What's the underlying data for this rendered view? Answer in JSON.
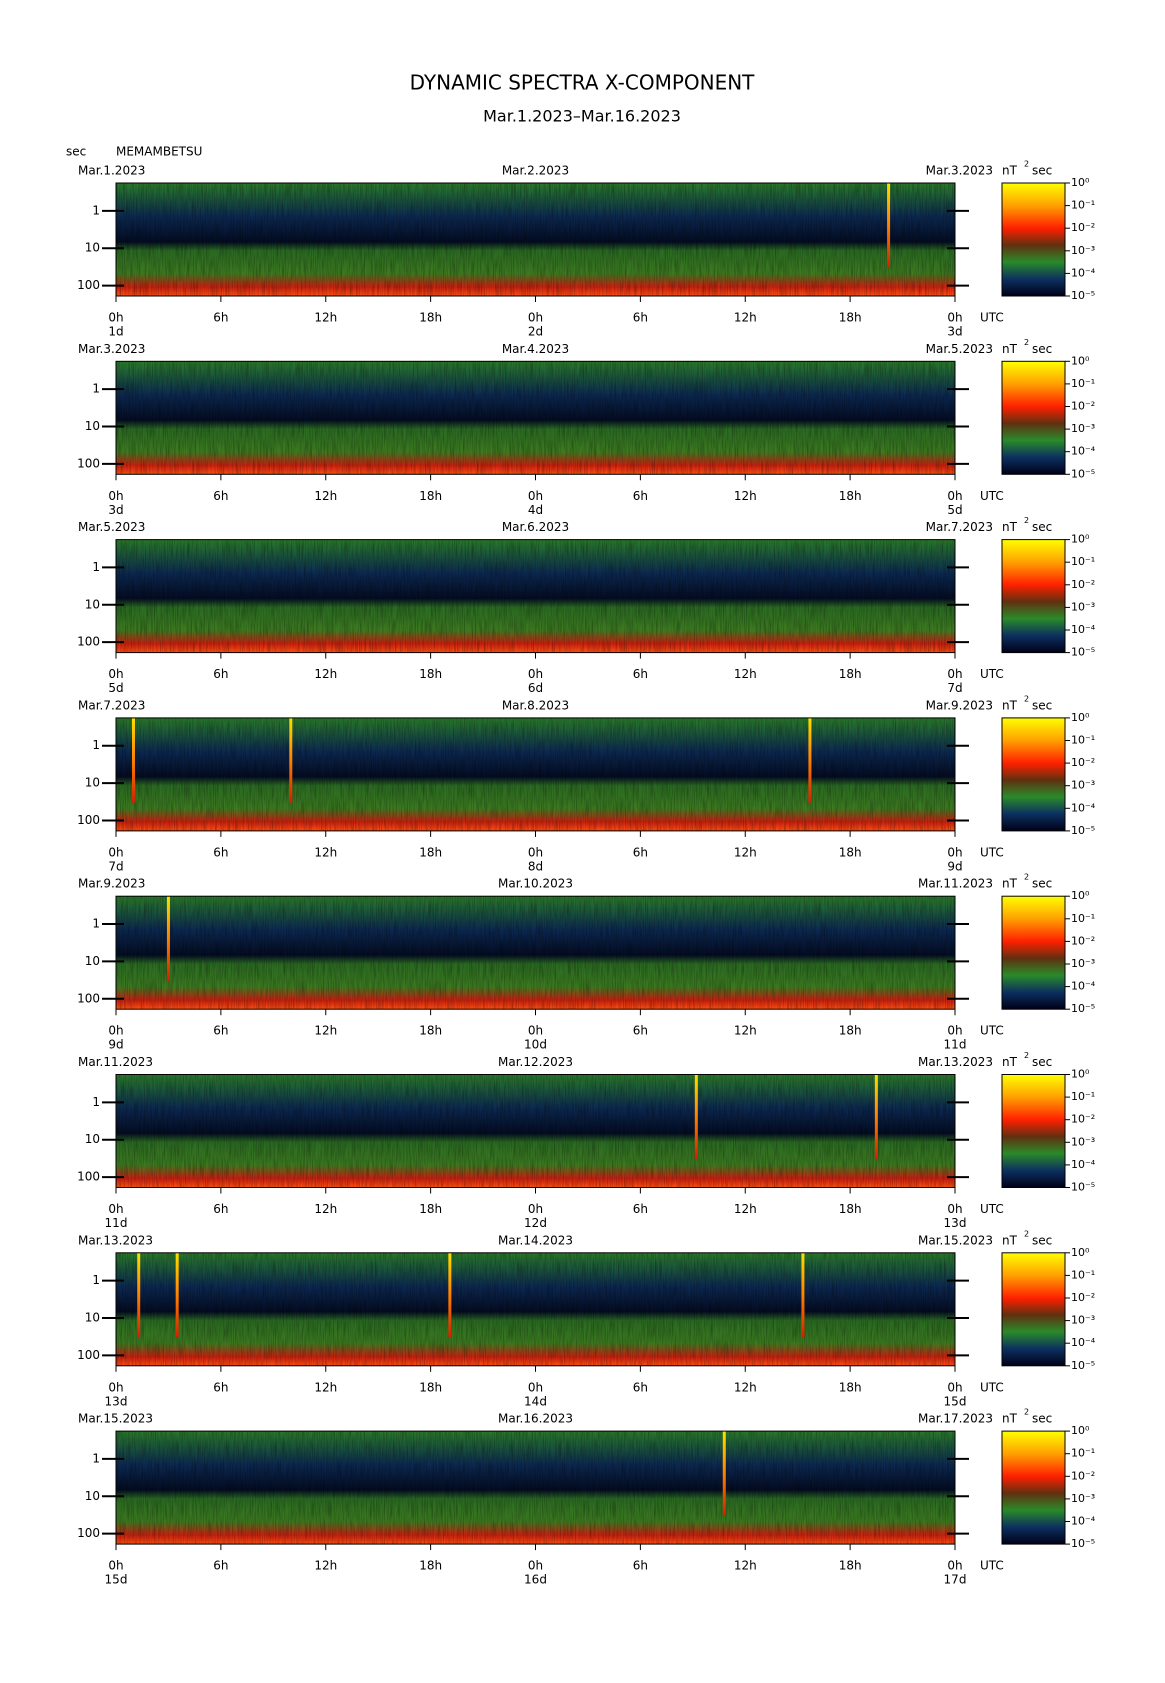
{
  "title": "DYNAMIC SPECTRA X-COMPONENT",
  "subtitle": "Mar.1.2023–Mar.16.2023",
  "y_label": "sec",
  "station": "MEMAMBETSU",
  "x_label": "UTC",
  "colorbar_label": "nT",
  "colorbar_label_exp": "2",
  "colorbar_label_unit": "sec",
  "event_color": "#ffe000",
  "chart_data": [
    {
      "type": "spectrogram",
      "date_left": "Mar.1.2023",
      "date_mid": "Mar.2.2023",
      "date_right": "Mar.3.2023",
      "xlim": [
        0,
        48
      ],
      "xticks": [
        {
          "value": 0,
          "label": "0h"
        },
        {
          "value": 6,
          "label": "6h"
        },
        {
          "value": 12,
          "label": "12h"
        },
        {
          "value": 18,
          "label": "18h"
        },
        {
          "value": 24,
          "label": "0h"
        },
        {
          "value": 30,
          "label": "6h"
        },
        {
          "value": 36,
          "label": "12h"
        },
        {
          "value": 42,
          "label": "18h"
        },
        {
          "value": 48,
          "label": "0h"
        }
      ],
      "day_labels": [
        {
          "value": 0,
          "label": "1d"
        },
        {
          "value": 24,
          "label": "2d"
        },
        {
          "value": 48,
          "label": "3d"
        }
      ],
      "ylim": [
        0.18,
        190
      ],
      "yticks": [
        1,
        10,
        100
      ],
      "y_log": true,
      "clim": [
        1e-05,
        1
      ],
      "cticks": [
        {
          "value": 1,
          "label": "10⁰"
        },
        {
          "value": 0.1,
          "label": "10⁻¹"
        },
        {
          "value": 0.01,
          "label": "10⁻²"
        },
        {
          "value": 0.001,
          "label": "10⁻³"
        },
        {
          "value": 0.0001,
          "label": "10⁻⁴"
        },
        {
          "value": 1e-05,
          "label": "10⁻⁵"
        }
      ],
      "events": [
        44.2
      ]
    },
    {
      "type": "spectrogram",
      "date_left": "Mar.3.2023",
      "date_mid": "Mar.4.2023",
      "date_right": "Mar.5.2023",
      "xlim": [
        0,
        48
      ],
      "xticks": [
        {
          "value": 0,
          "label": "0h"
        },
        {
          "value": 6,
          "label": "6h"
        },
        {
          "value": 12,
          "label": "12h"
        },
        {
          "value": 18,
          "label": "18h"
        },
        {
          "value": 24,
          "label": "0h"
        },
        {
          "value": 30,
          "label": "6h"
        },
        {
          "value": 36,
          "label": "12h"
        },
        {
          "value": 42,
          "label": "18h"
        },
        {
          "value": 48,
          "label": "0h"
        }
      ],
      "day_labels": [
        {
          "value": 0,
          "label": "3d"
        },
        {
          "value": 24,
          "label": "4d"
        },
        {
          "value": 48,
          "label": "5d"
        }
      ],
      "ylim": [
        0.18,
        190
      ],
      "yticks": [
        1,
        10,
        100
      ],
      "y_log": true,
      "clim": [
        1e-05,
        1
      ],
      "cticks": [
        {
          "value": 1,
          "label": "10⁰"
        },
        {
          "value": 0.1,
          "label": "10⁻¹"
        },
        {
          "value": 0.01,
          "label": "10⁻²"
        },
        {
          "value": 0.001,
          "label": "10⁻³"
        },
        {
          "value": 0.0001,
          "label": "10⁻⁴"
        },
        {
          "value": 1e-05,
          "label": "10⁻⁵"
        }
      ],
      "events": []
    },
    {
      "type": "spectrogram",
      "date_left": "Mar.5.2023",
      "date_mid": "Mar.6.2023",
      "date_right": "Mar.7.2023",
      "xlim": [
        0,
        48
      ],
      "xticks": [
        {
          "value": 0,
          "label": "0h"
        },
        {
          "value": 6,
          "label": "6h"
        },
        {
          "value": 12,
          "label": "12h"
        },
        {
          "value": 18,
          "label": "18h"
        },
        {
          "value": 24,
          "label": "0h"
        },
        {
          "value": 30,
          "label": "6h"
        },
        {
          "value": 36,
          "label": "12h"
        },
        {
          "value": 42,
          "label": "18h"
        },
        {
          "value": 48,
          "label": "0h"
        }
      ],
      "day_labels": [
        {
          "value": 0,
          "label": "5d"
        },
        {
          "value": 24,
          "label": "6d"
        },
        {
          "value": 48,
          "label": "7d"
        }
      ],
      "ylim": [
        0.18,
        190
      ],
      "yticks": [
        1,
        10,
        100
      ],
      "y_log": true,
      "clim": [
        1e-05,
        1
      ],
      "cticks": [
        {
          "value": 1,
          "label": "10⁰"
        },
        {
          "value": 0.1,
          "label": "10⁻¹"
        },
        {
          "value": 0.01,
          "label": "10⁻²"
        },
        {
          "value": 0.001,
          "label": "10⁻³"
        },
        {
          "value": 0.0001,
          "label": "10⁻⁴"
        },
        {
          "value": 1e-05,
          "label": "10⁻⁵"
        }
      ],
      "events": []
    },
    {
      "type": "spectrogram",
      "date_left": "Mar.7.2023",
      "date_mid": "Mar.8.2023",
      "date_right": "Mar.9.2023",
      "xlim": [
        0,
        48
      ],
      "xticks": [
        {
          "value": 0,
          "label": "0h"
        },
        {
          "value": 6,
          "label": "6h"
        },
        {
          "value": 12,
          "label": "12h"
        },
        {
          "value": 18,
          "label": "18h"
        },
        {
          "value": 24,
          "label": "0h"
        },
        {
          "value": 30,
          "label": "6h"
        },
        {
          "value": 36,
          "label": "12h"
        },
        {
          "value": 42,
          "label": "18h"
        },
        {
          "value": 48,
          "label": "0h"
        }
      ],
      "day_labels": [
        {
          "value": 0,
          "label": "7d"
        },
        {
          "value": 24,
          "label": "8d"
        },
        {
          "value": 48,
          "label": "9d"
        }
      ],
      "ylim": [
        0.18,
        190
      ],
      "yticks": [
        1,
        10,
        100
      ],
      "y_log": true,
      "clim": [
        1e-05,
        1
      ],
      "cticks": [
        {
          "value": 1,
          "label": "10⁰"
        },
        {
          "value": 0.1,
          "label": "10⁻¹"
        },
        {
          "value": 0.01,
          "label": "10⁻²"
        },
        {
          "value": 0.001,
          "label": "10⁻³"
        },
        {
          "value": 0.0001,
          "label": "10⁻⁴"
        },
        {
          "value": 1e-05,
          "label": "10⁻⁵"
        }
      ],
      "events": [
        1.0,
        10.0,
        39.7
      ]
    },
    {
      "type": "spectrogram",
      "date_left": "Mar.9.2023",
      "date_mid": "Mar.10.2023",
      "date_right": "Mar.11.2023",
      "xlim": [
        0,
        48
      ],
      "xticks": [
        {
          "value": 0,
          "label": "0h"
        },
        {
          "value": 6,
          "label": "6h"
        },
        {
          "value": 12,
          "label": "12h"
        },
        {
          "value": 18,
          "label": "18h"
        },
        {
          "value": 24,
          "label": "0h"
        },
        {
          "value": 30,
          "label": "6h"
        },
        {
          "value": 36,
          "label": "12h"
        },
        {
          "value": 42,
          "label": "18h"
        },
        {
          "value": 48,
          "label": "0h"
        }
      ],
      "day_labels": [
        {
          "value": 0,
          "label": "9d"
        },
        {
          "value": 24,
          "label": "10d"
        },
        {
          "value": 48,
          "label": "11d"
        }
      ],
      "ylim": [
        0.18,
        190
      ],
      "yticks": [
        1,
        10,
        100
      ],
      "y_log": true,
      "clim": [
        1e-05,
        1
      ],
      "cticks": [
        {
          "value": 1,
          "label": "10⁰"
        },
        {
          "value": 0.1,
          "label": "10⁻¹"
        },
        {
          "value": 0.01,
          "label": "10⁻²"
        },
        {
          "value": 0.001,
          "label": "10⁻³"
        },
        {
          "value": 0.0001,
          "label": "10⁻⁴"
        },
        {
          "value": 1e-05,
          "label": "10⁻⁵"
        }
      ],
      "events": [
        3.0
      ]
    },
    {
      "type": "spectrogram",
      "date_left": "Mar.11.2023",
      "date_mid": "Mar.12.2023",
      "date_right": "Mar.13.2023",
      "xlim": [
        0,
        48
      ],
      "xticks": [
        {
          "value": 0,
          "label": "0h"
        },
        {
          "value": 6,
          "label": "6h"
        },
        {
          "value": 12,
          "label": "12h"
        },
        {
          "value": 18,
          "label": "18h"
        },
        {
          "value": 24,
          "label": "0h"
        },
        {
          "value": 30,
          "label": "6h"
        },
        {
          "value": 36,
          "label": "12h"
        },
        {
          "value": 42,
          "label": "18h"
        },
        {
          "value": 48,
          "label": "0h"
        }
      ],
      "day_labels": [
        {
          "value": 0,
          "label": "11d"
        },
        {
          "value": 24,
          "label": "12d"
        },
        {
          "value": 48,
          "label": "13d"
        }
      ],
      "ylim": [
        0.18,
        190
      ],
      "yticks": [
        1,
        10,
        100
      ],
      "y_log": true,
      "clim": [
        1e-05,
        1
      ],
      "cticks": [
        {
          "value": 1,
          "label": "10⁰"
        },
        {
          "value": 0.1,
          "label": "10⁻¹"
        },
        {
          "value": 0.01,
          "label": "10⁻²"
        },
        {
          "value": 0.001,
          "label": "10⁻³"
        },
        {
          "value": 0.0001,
          "label": "10⁻⁴"
        },
        {
          "value": 1e-05,
          "label": "10⁻⁵"
        }
      ],
      "events": [
        33.2,
        43.5
      ]
    },
    {
      "type": "spectrogram",
      "date_left": "Mar.13.2023",
      "date_mid": "Mar.14.2023",
      "date_right": "Mar.15.2023",
      "xlim": [
        0,
        48
      ],
      "xticks": [
        {
          "value": 0,
          "label": "0h"
        },
        {
          "value": 6,
          "label": "6h"
        },
        {
          "value": 12,
          "label": "12h"
        },
        {
          "value": 18,
          "label": "18h"
        },
        {
          "value": 24,
          "label": "0h"
        },
        {
          "value": 30,
          "label": "6h"
        },
        {
          "value": 36,
          "label": "12h"
        },
        {
          "value": 42,
          "label": "18h"
        },
        {
          "value": 48,
          "label": "0h"
        }
      ],
      "day_labels": [
        {
          "value": 0,
          "label": "13d"
        },
        {
          "value": 24,
          "label": "14d"
        },
        {
          "value": 48,
          "label": "15d"
        }
      ],
      "ylim": [
        0.18,
        190
      ],
      "yticks": [
        1,
        10,
        100
      ],
      "y_log": true,
      "clim": [
        1e-05,
        1
      ],
      "cticks": [
        {
          "value": 1,
          "label": "10⁰"
        },
        {
          "value": 0.1,
          "label": "10⁻¹"
        },
        {
          "value": 0.01,
          "label": "10⁻²"
        },
        {
          "value": 0.001,
          "label": "10⁻³"
        },
        {
          "value": 0.0001,
          "label": "10⁻⁴"
        },
        {
          "value": 1e-05,
          "label": "10⁻⁵"
        }
      ],
      "events": [
        1.3,
        3.5,
        19.1,
        39.3
      ]
    },
    {
      "type": "spectrogram",
      "date_left": "Mar.15.2023",
      "date_mid": "Mar.16.2023",
      "date_right": "Mar.17.2023",
      "xlim": [
        0,
        48
      ],
      "xticks": [
        {
          "value": 0,
          "label": "0h"
        },
        {
          "value": 6,
          "label": "6h"
        },
        {
          "value": 12,
          "label": "12h"
        },
        {
          "value": 18,
          "label": "18h"
        },
        {
          "value": 24,
          "label": "0h"
        },
        {
          "value": 30,
          "label": "6h"
        },
        {
          "value": 36,
          "label": "12h"
        },
        {
          "value": 42,
          "label": "18h"
        },
        {
          "value": 48,
          "label": "0h"
        }
      ],
      "day_labels": [
        {
          "value": 0,
          "label": "15d"
        },
        {
          "value": 24,
          "label": "16d"
        },
        {
          "value": 48,
          "label": "17d"
        }
      ],
      "ylim": [
        0.18,
        190
      ],
      "yticks": [
        1,
        10,
        100
      ],
      "y_log": true,
      "clim": [
        1e-05,
        1
      ],
      "cticks": [
        {
          "value": 1,
          "label": "10⁰"
        },
        {
          "value": 0.1,
          "label": "10⁻¹"
        },
        {
          "value": 0.01,
          "label": "10⁻²"
        },
        {
          "value": 0.001,
          "label": "10⁻³"
        },
        {
          "value": 0.0001,
          "label": "10⁻⁴"
        },
        {
          "value": 1e-05,
          "label": "10⁻⁵"
        }
      ],
      "events": [
        34.8
      ]
    }
  ]
}
